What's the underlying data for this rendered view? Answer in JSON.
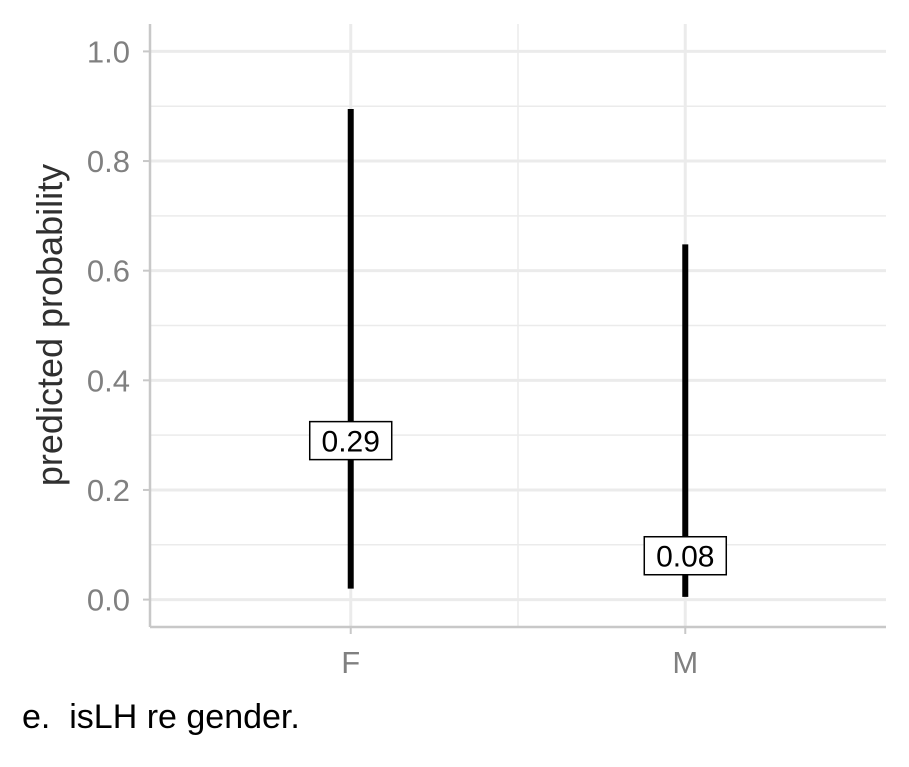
{
  "caption": "e.  isLH re gender.",
  "chart_data": {
    "type": "errorbar",
    "categories": [
      "F",
      "M"
    ],
    "estimates": [
      0.29,
      0.08
    ],
    "lower": [
      0.02,
      0.005
    ],
    "upper": [
      0.895,
      0.648
    ],
    "point_labels": [
      "0.29",
      "0.08"
    ],
    "ylabel": "predicted probability",
    "xlabel": "",
    "ylim": [
      -0.05,
      1.05
    ],
    "yticks": [
      0.0,
      0.2,
      0.4,
      0.6,
      0.8,
      1.0
    ],
    "ytick_labels": [
      "0.0",
      "0.2",
      "0.4",
      "0.6",
      "0.8",
      "1.0"
    ],
    "grid": true,
    "colors": {
      "bar": "#000000",
      "grid": "#ebebeb",
      "axis": "#c8c8c8",
      "tick_text": "#808080",
      "axis_title": "#303030"
    }
  }
}
